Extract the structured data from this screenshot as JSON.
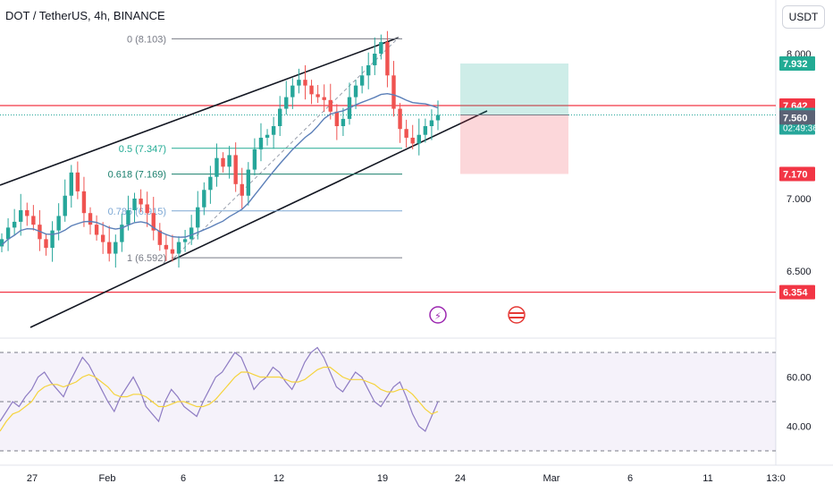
{
  "header": {
    "title": "DOT / TetherUS, 4h, BINANCE",
    "currency_button": "USDT"
  },
  "colors": {
    "up": "#26a69a",
    "down": "#ef5350",
    "ma": "#5b7fb8",
    "rsi": "#8e7cc3",
    "rsi_ma": "#f5d33b",
    "level": "#f23645",
    "target": "#22ab94",
    "stop": "#f23645"
  },
  "chart_data": [
    {
      "type": "candlestick",
      "title": "DOT / TetherUS, 4h, BINANCE",
      "x_ticks": [
        "27",
        "Feb",
        "6",
        "12",
        "19",
        "24",
        "Mar",
        "6",
        "11",
        "13:0"
      ],
      "y_ticks": [
        "8.000",
        "7.000",
        "6.500"
      ],
      "price_range": [
        6.25,
        8.2
      ],
      "close_path": [
        6.72,
        6.8,
        6.84,
        6.92,
        6.88,
        6.82,
        6.72,
        6.66,
        6.78,
        6.88,
        7.02,
        7.18,
        7.05,
        6.9,
        6.82,
        6.75,
        6.7,
        6.62,
        6.7,
        6.82,
        6.92,
        7.0,
        6.96,
        6.9,
        6.78,
        6.68,
        6.65,
        6.62,
        6.7,
        6.72,
        6.8,
        6.94,
        7.06,
        7.15,
        7.28,
        7.22,
        7.3,
        7.1,
        7.02,
        7.2,
        7.34,
        7.42,
        7.44,
        7.5,
        7.62,
        7.7,
        7.78,
        7.82,
        7.78,
        7.72,
        7.7,
        7.68,
        7.6,
        7.5,
        7.55,
        7.7,
        7.78,
        7.85,
        7.92,
        8.0,
        8.08,
        7.85,
        7.62,
        7.48,
        7.42,
        7.38,
        7.44,
        7.5,
        7.54,
        7.577
      ],
      "price_labels": [
        {
          "value": "7.932",
          "kind": "target"
        },
        {
          "value": "7.642",
          "kind": "level"
        },
        {
          "value": "7.577",
          "kind": "last",
          "countdown": "02:49:36"
        },
        {
          "value": "7.560",
          "kind": "ma"
        },
        {
          "value": "7.170",
          "kind": "stop"
        },
        {
          "value": "6.354",
          "kind": "level"
        }
      ],
      "horizontal_levels": [
        7.642,
        6.354
      ],
      "fibonacci": [
        {
          "label": "0 (8.103)",
          "value": 8.103
        },
        {
          "label": "0.5 (7.347)",
          "value": 7.347
        },
        {
          "label": "0.618 (7.169)",
          "value": 7.169
        },
        {
          "label": "0.786 (6.915)",
          "value": 6.915
        },
        {
          "label": "1 (6.592)",
          "value": 6.592
        }
      ],
      "position": {
        "entry": 7.577,
        "target": 7.932,
        "stop": 7.17
      }
    },
    {
      "type": "line",
      "title": "",
      "y_ticks": [
        "60.00",
        "40.00"
      ],
      "y_range": [
        25,
        80
      ],
      "upper_band": 70,
      "middle_line": 50,
      "lower_band": 30,
      "series": [
        {
          "values": [
            42,
            46,
            50,
            48,
            52,
            55,
            60,
            62,
            58,
            55,
            52,
            58,
            63,
            68,
            65,
            60,
            55,
            50,
            46,
            52,
            56,
            60,
            55,
            48,
            45,
            42,
            50,
            55,
            52,
            48,
            46,
            44,
            50,
            55,
            60,
            62,
            66,
            70,
            68,
            62,
            55,
            58,
            60,
            64,
            62,
            58,
            55,
            60,
            66,
            70,
            72,
            68,
            62,
            56,
            54,
            58,
            62,
            60,
            55,
            50,
            48,
            52,
            56,
            58,
            52,
            45,
            40,
            38,
            44,
            50
          ]
        },
        {
          "values": [
            38,
            42,
            45,
            46,
            48,
            50,
            54,
            56,
            57,
            57,
            56,
            57,
            58,
            60,
            61,
            60,
            58,
            56,
            53,
            52,
            52,
            53,
            53,
            52,
            50,
            48,
            48,
            49,
            50,
            50,
            49,
            48,
            48,
            49,
            51,
            54,
            57,
            60,
            62,
            62,
            61,
            60,
            60,
            60,
            60,
            59,
            58,
            58,
            59,
            61,
            63,
            64,
            64,
            62,
            60,
            59,
            59,
            59,
            58,
            57,
            55,
            54,
            54,
            55,
            55,
            53,
            50,
            47,
            45,
            46
          ]
        }
      ]
    }
  ]
}
